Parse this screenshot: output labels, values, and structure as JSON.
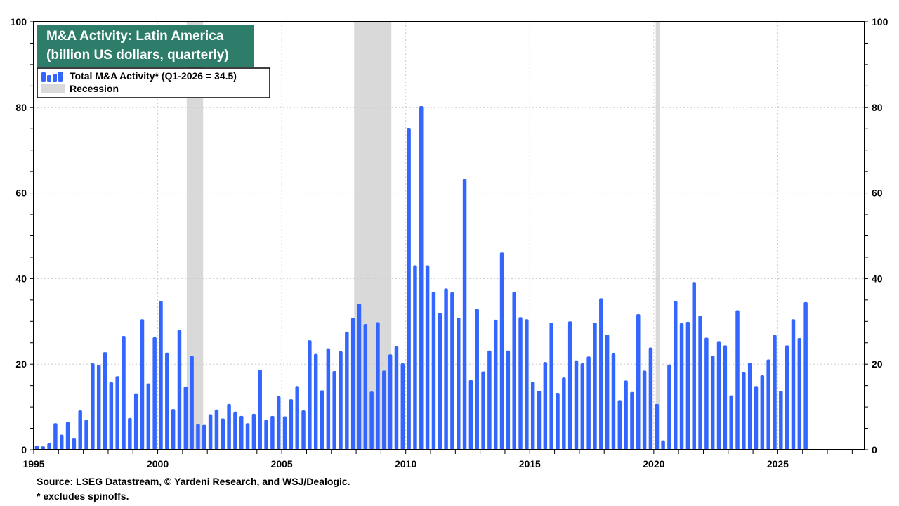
{
  "chart_data": {
    "type": "bar",
    "title_line1": "M&A Activity: Latin America",
    "title_line2": "(billion US dollars, quarterly)",
    "legend": {
      "series_label": "Total M&A Activity* (Q1-2026 = 34.5)",
      "recession_label": "Recession"
    },
    "xlim": [
      1995,
      2028.5
    ],
    "ylim": [
      0,
      100
    ],
    "x_ticks": [
      1995,
      2000,
      2005,
      2010,
      2015,
      2020,
      2025
    ],
    "y_ticks": [
      0,
      20,
      40,
      60,
      80,
      100
    ],
    "grid": true,
    "legend_placement": "top-left",
    "start_quarter": "Q1-1995",
    "values": [
      1.0,
      0.8,
      1.5,
      6.2,
      3.5,
      6.5,
      2.8,
      9.2,
      7.0,
      20.2,
      19.8,
      22.8,
      15.8,
      17.2,
      26.6,
      7.4,
      13.2,
      30.5,
      15.5,
      26.3,
      34.8,
      22.7,
      9.5,
      28.0,
      14.8,
      21.9,
      6.0,
      5.8,
      8.3,
      9.4,
      7.3,
      10.7,
      8.9,
      7.9,
      6.2,
      8.4,
      18.7,
      7.0,
      7.9,
      12.5,
      7.8,
      11.8,
      14.9,
      9.2,
      25.6,
      22.4,
      13.9,
      23.7,
      18.4,
      23.0,
      27.6,
      30.8,
      34.1,
      29.4,
      13.6,
      29.8,
      18.5,
      22.3,
      24.2,
      20.2,
      75.2,
      43.1,
      80.3,
      43.1,
      36.9,
      32.0,
      37.7,
      36.8,
      30.9,
      63.3,
      16.3,
      32.9,
      18.3,
      23.2,
      30.4,
      46.1,
      23.2,
      36.9,
      31.0,
      30.5,
      15.9,
      13.8,
      20.5,
      29.7,
      13.3,
      16.9,
      30.0,
      20.9,
      20.2,
      21.8,
      29.7,
      35.4,
      26.9,
      22.5,
      11.6,
      16.2,
      13.5,
      31.7,
      18.5,
      23.9,
      10.7,
      2.2,
      19.9,
      34.8,
      29.6,
      29.9,
      39.2,
      31.3,
      26.2,
      22.0,
      25.4,
      24.4,
      12.7,
      32.6,
      18.1,
      20.3,
      14.9,
      17.4,
      21.1,
      26.8,
      13.8,
      24.4,
      30.5,
      26.1,
      34.5
    ],
    "recessions": [
      [
        2001.17,
        2001.83
      ],
      [
        2007.92,
        2009.42
      ],
      [
        2020.08,
        2020.25
      ]
    ],
    "colors": {
      "bar": "#3366ff",
      "recession": "#d9d9d9",
      "title_bg": "#2e7d6b",
      "grid": "#cccccc"
    }
  },
  "footnotes": {
    "source": "Source: LSEG Datastream, © Yardeni Research, and WSJ/Dealogic.",
    "note": "* excludes spinoffs."
  }
}
